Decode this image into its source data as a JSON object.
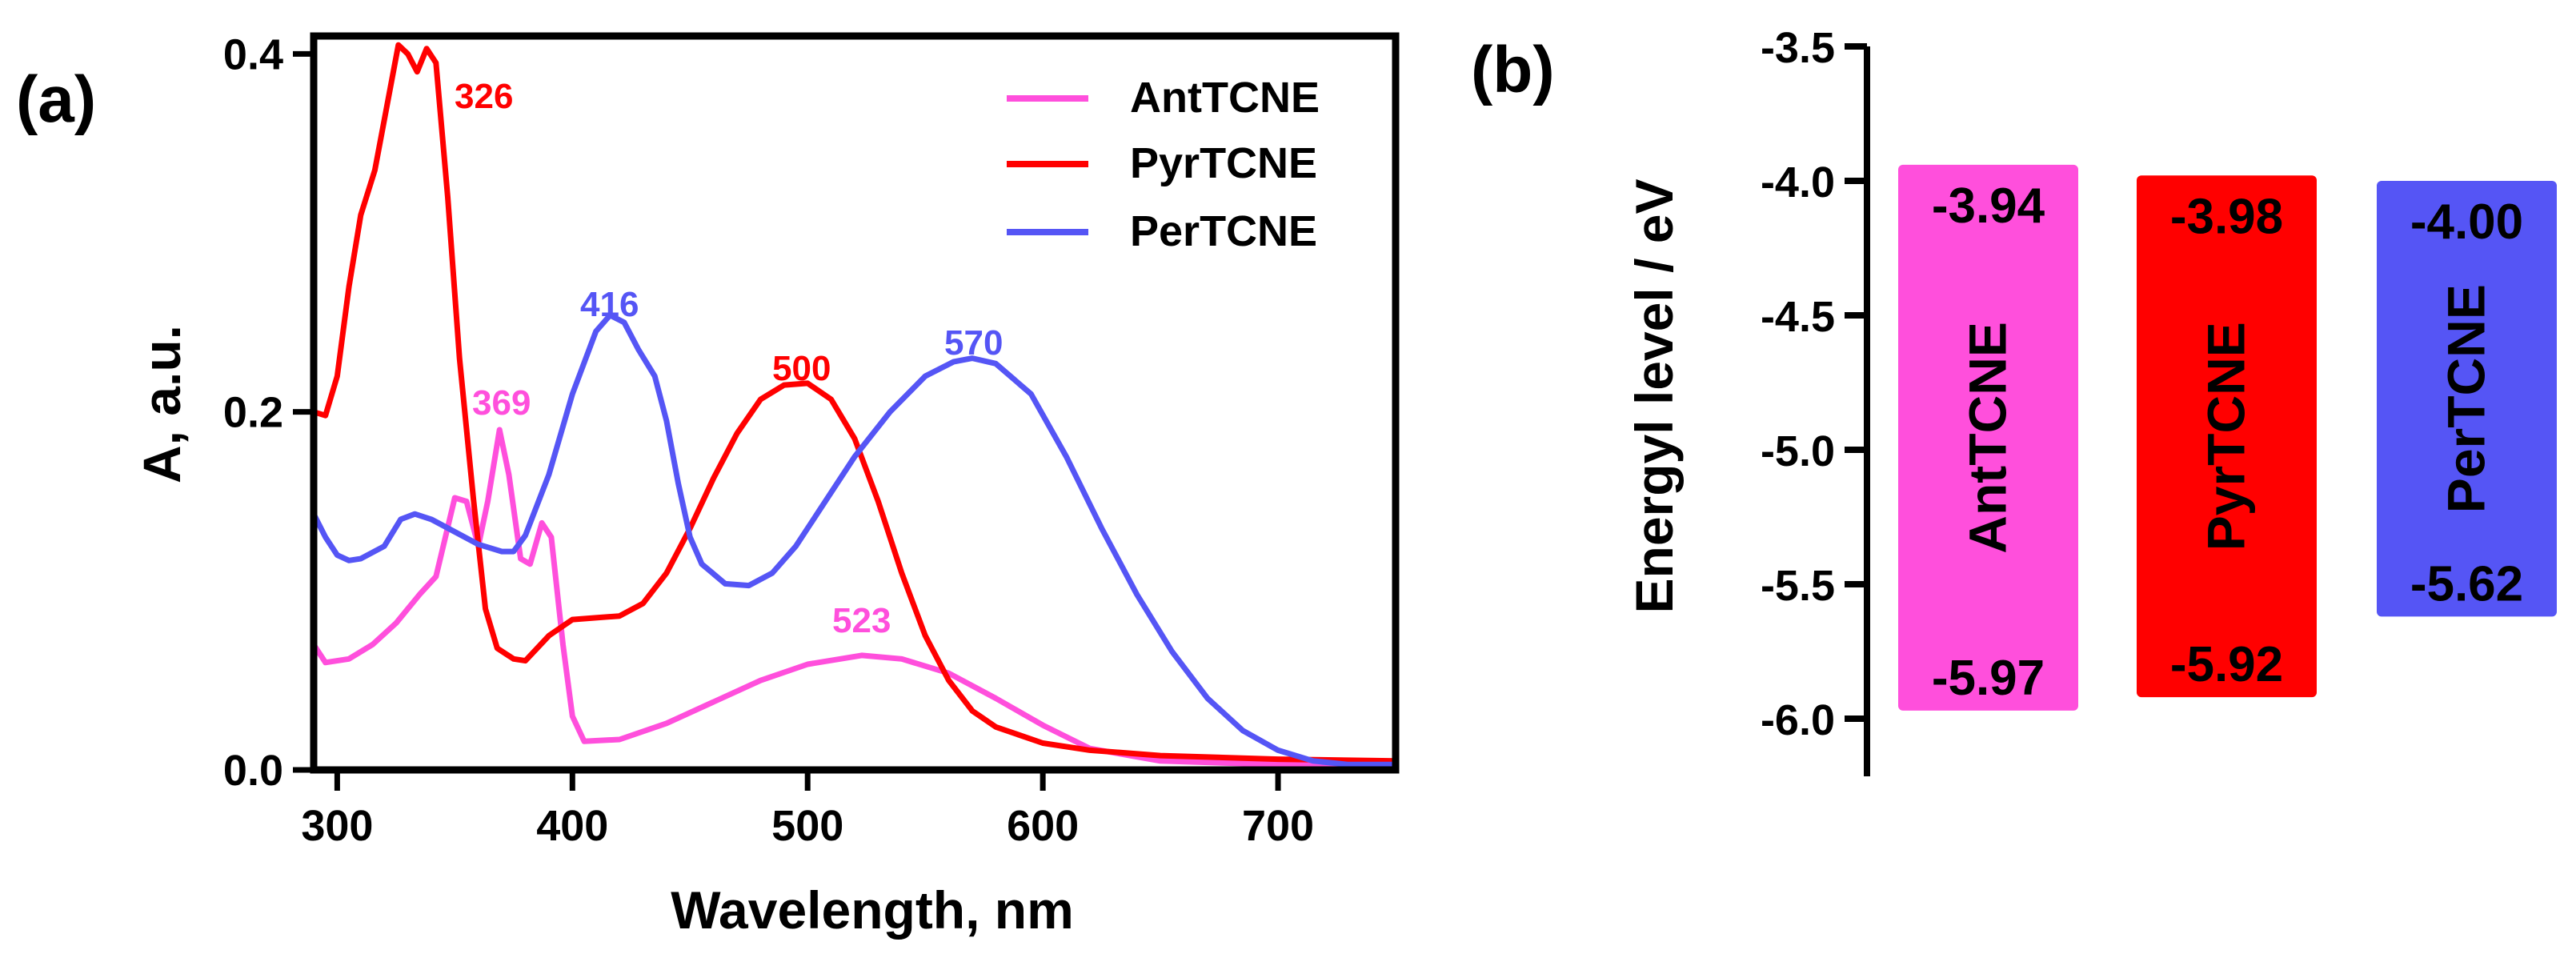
{
  "panel_labels": {
    "a": "(a)",
    "b": "(b)"
  },
  "colors": {
    "ant": "#ff4fdc",
    "pyr": "#ff0000",
    "per": "#5555f5",
    "axis": "#000000"
  },
  "chart_data": [
    {
      "type": "line",
      "title": "",
      "xlabel": "Wavelength, nm",
      "ylabel": "A, a.u.",
      "xlim": [
        290,
        750
      ],
      "ylim": [
        0,
        0.41
      ],
      "xticks": [
        300,
        400,
        500,
        600,
        700
      ],
      "xtick_labels": [
        "300",
        "400",
        "500",
        "600",
        "700"
      ],
      "yticks": [
        0,
        0.2,
        0.4
      ],
      "ytick_labels": [
        "0.0",
        "0.2",
        "0.4"
      ],
      "legend_position": "top-right",
      "series": [
        {
          "name": "AntTCNE",
          "color": "#ff4fdc",
          "points": [
            [
              290,
              0.07
            ],
            [
              295,
              0.06
            ],
            [
              305,
              0.062
            ],
            [
              315,
              0.07
            ],
            [
              325,
              0.082
            ],
            [
              335,
              0.098
            ],
            [
              342,
              0.108
            ],
            [
              350,
              0.152
            ],
            [
              355,
              0.15
            ],
            [
              360,
              0.125
            ],
            [
              364,
              0.15
            ],
            [
              369,
              0.19
            ],
            [
              373,
              0.165
            ],
            [
              378,
              0.118
            ],
            [
              382,
              0.115
            ],
            [
              387,
              0.138
            ],
            [
              391,
              0.13
            ],
            [
              396,
              0.07
            ],
            [
              400,
              0.03
            ],
            [
              405,
              0.016
            ],
            [
              420,
              0.017
            ],
            [
              440,
              0.026
            ],
            [
              460,
              0.038
            ],
            [
              480,
              0.05
            ],
            [
              500,
              0.059
            ],
            [
              523,
              0.064
            ],
            [
              540,
              0.062
            ],
            [
              560,
              0.054
            ],
            [
              580,
              0.04
            ],
            [
              600,
              0.025
            ],
            [
              620,
              0.012
            ],
            [
              650,
              0.005
            ],
            [
              700,
              0.003
            ],
            [
              750,
              0.003
            ]
          ],
          "label": {
            "text": "369",
            "x": 369,
            "y": 0.19
          }
        },
        {
          "name": "PyrTCNE",
          "color": "#ff0000",
          "points": [
            [
              290,
              0.2
            ],
            [
              295,
              0.198
            ],
            [
              300,
              0.22
            ],
            [
              305,
              0.27
            ],
            [
              310,
              0.31
            ],
            [
              316,
              0.335
            ],
            [
              321,
              0.37
            ],
            [
              326,
              0.405
            ],
            [
              330,
              0.4
            ],
            [
              334,
              0.39
            ],
            [
              338,
              0.403
            ],
            [
              342,
              0.395
            ],
            [
              347,
              0.32
            ],
            [
              352,
              0.23
            ],
            [
              358,
              0.15
            ],
            [
              363,
              0.09
            ],
            [
              368,
              0.068
            ],
            [
              375,
              0.062
            ],
            [
              380,
              0.061
            ],
            [
              390,
              0.075
            ],
            [
              400,
              0.084
            ],
            [
              410,
              0.085
            ],
            [
              420,
              0.086
            ],
            [
              430,
              0.093
            ],
            [
              440,
              0.11
            ],
            [
              450,
              0.135
            ],
            [
              460,
              0.163
            ],
            [
              470,
              0.188
            ],
            [
              480,
              0.207
            ],
            [
              490,
              0.215
            ],
            [
              500,
              0.216
            ],
            [
              510,
              0.207
            ],
            [
              520,
              0.185
            ],
            [
              530,
              0.15
            ],
            [
              540,
              0.11
            ],
            [
              550,
              0.075
            ],
            [
              560,
              0.05
            ],
            [
              570,
              0.033
            ],
            [
              580,
              0.024
            ],
            [
              600,
              0.015
            ],
            [
              620,
              0.011
            ],
            [
              650,
              0.008
            ],
            [
              700,
              0.006
            ],
            [
              750,
              0.005
            ]
          ],
          "label": {
            "text": "326",
            "x": 326,
            "y": 0.405
          }
        },
        {
          "name": "PerTCNE",
          "color": "#5555f5",
          "points": [
            [
              290,
              0.143
            ],
            [
              295,
              0.13
            ],
            [
              300,
              0.12
            ],
            [
              305,
              0.117
            ],
            [
              310,
              0.118
            ],
            [
              320,
              0.125
            ],
            [
              327,
              0.14
            ],
            [
              333,
              0.143
            ],
            [
              340,
              0.14
            ],
            [
              350,
              0.133
            ],
            [
              360,
              0.126
            ],
            [
              370,
              0.122
            ],
            [
              375,
              0.122
            ],
            [
              380,
              0.131
            ],
            [
              390,
              0.165
            ],
            [
              400,
              0.21
            ],
            [
              410,
              0.245
            ],
            [
              416,
              0.254
            ],
            [
              422,
              0.25
            ],
            [
              428,
              0.235
            ],
            [
              435,
              0.22
            ],
            [
              440,
              0.195
            ],
            [
              445,
              0.16
            ],
            [
              450,
              0.13
            ],
            [
              455,
              0.115
            ],
            [
              465,
              0.104
            ],
            [
              475,
              0.103
            ],
            [
              485,
              0.11
            ],
            [
              495,
              0.125
            ],
            [
              505,
              0.145
            ],
            [
              520,
              0.175
            ],
            [
              535,
              0.2
            ],
            [
              550,
              0.22
            ],
            [
              562,
              0.228
            ],
            [
              570,
              0.23
            ],
            [
              580,
              0.227
            ],
            [
              595,
              0.21
            ],
            [
              610,
              0.175
            ],
            [
              625,
              0.135
            ],
            [
              640,
              0.098
            ],
            [
              655,
              0.066
            ],
            [
              670,
              0.04
            ],
            [
              685,
              0.022
            ],
            [
              700,
              0.011
            ],
            [
              715,
              0.005
            ],
            [
              730,
              0.003
            ],
            [
              750,
              0.003
            ]
          ],
          "label": {
            "text": "416",
            "x": 416,
            "y": 0.254
          }
        }
      ],
      "annotations": [
        {
          "text": "326",
          "color": "#ff0000"
        },
        {
          "text": "369",
          "color": "#ff4fdc"
        },
        {
          "text": "416",
          "color": "#5555f5"
        },
        {
          "text": "500",
          "color": "#ff0000"
        },
        {
          "text": "570",
          "color": "#5555f5"
        },
        {
          "text": "523",
          "color": "#ff4fdc"
        }
      ]
    },
    {
      "type": "bar",
      "title": "",
      "xlabel": "",
      "ylabel": "Energyl level / eV",
      "ylim": [
        -6.2,
        -3.5
      ],
      "yticks": [
        -3.5,
        -4.0,
        -4.5,
        -5.0,
        -5.5,
        -6.0
      ],
      "ytick_labels": [
        "-3.5",
        "-4.0",
        "-4.5",
        "-5.0",
        "-5.5",
        "-6.0"
      ],
      "categories": [
        "AntTCNE",
        "PyrTCNE",
        "PerTCNE"
      ],
      "bars": [
        {
          "name": "AntTCNE",
          "color": "#ff4fdc",
          "lumo": -3.94,
          "homo": -5.97,
          "lumo_label": "-3.94",
          "homo_label": "-5.97"
        },
        {
          "name": "PyrTCNE",
          "color": "#ff0000",
          "lumo": -3.98,
          "homo": -5.92,
          "lumo_label": "-3.98",
          "homo_label": "-5.92"
        },
        {
          "name": "PerTCNE",
          "color": "#5555f5",
          "lumo": -4.0,
          "homo": -5.62,
          "lumo_label": "-4.00",
          "homo_label": "-5.62"
        }
      ]
    }
  ]
}
